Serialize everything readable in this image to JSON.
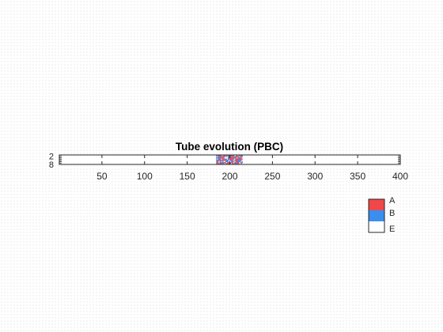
{
  "chart_data": {
    "type": "heatmap",
    "title": "Tube evolution (PBC)",
    "xlabel": "",
    "ylabel": "",
    "xlim": [
      0,
      400
    ],
    "ylim": [
      1,
      8
    ],
    "xticks": [
      50,
      100,
      150,
      200,
      250,
      300,
      350,
      400
    ],
    "xtick_labels": [
      "50",
      "100",
      "150",
      "200",
      "250",
      "300",
      "350",
      "400"
    ],
    "yticks": [
      2,
      8
    ],
    "ytick_labels": [
      "2",
      "8"
    ],
    "cells": {
      "x_range": [
        184,
        215
      ],
      "rows": 8,
      "columns": 32,
      "states": [
        "A",
        "B",
        "E"
      ]
    },
    "colors": {
      "A": "#f04848",
      "B": "#3a8ef0",
      "E": "#ffffff"
    },
    "legend": {
      "placement": "bottom-right",
      "entries": [
        "A",
        "B",
        "E"
      ]
    }
  }
}
